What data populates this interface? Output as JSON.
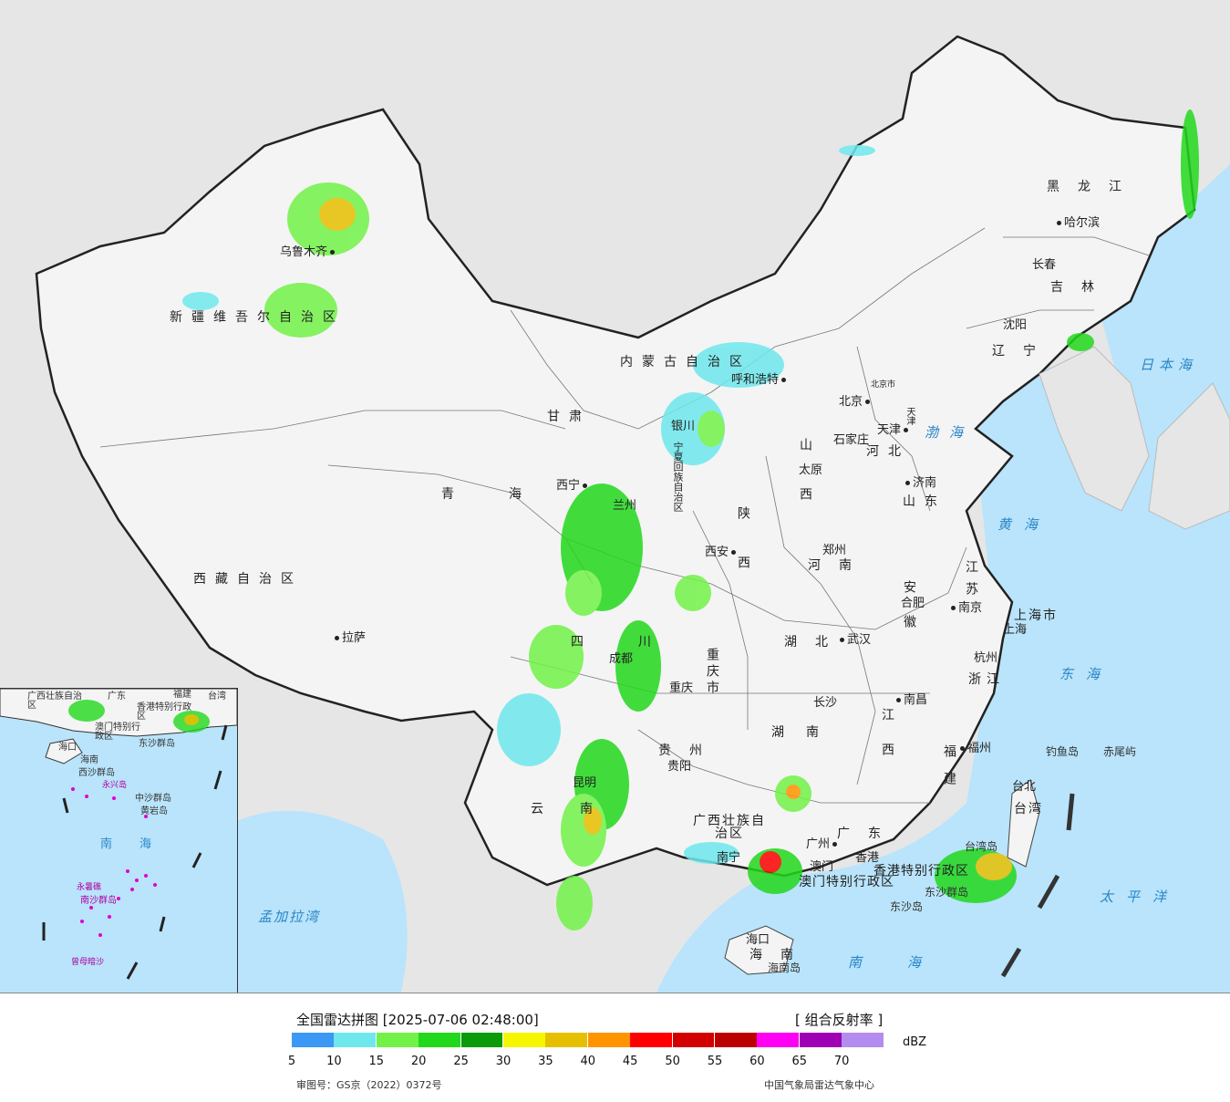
{
  "legend": {
    "title": "全国雷达拼图 [2025-07-06 02:48:00]",
    "product": "[ 组合反射率 ]",
    "unit": "dBZ",
    "review_number": "审图号：GS京（2022）0372号",
    "agency": "中国气象局雷达气象中心",
    "ticks": [
      "5",
      "10",
      "15",
      "20",
      "25",
      "30",
      "35",
      "40",
      "45",
      "50",
      "55",
      "60",
      "65",
      "70"
    ],
    "colors": [
      "#3b98f4",
      "#6ee8ec",
      "#72f248",
      "#22d81c",
      "#0a9a0a",
      "#f6f600",
      "#e6c000",
      "#ff9400",
      "#ff0000",
      "#d20000",
      "#bc0000",
      "#ff00f4",
      "#9e00b4",
      "#b48cf0"
    ]
  },
  "labels": {
    "cities": [
      "乌鲁木齐",
      "拉萨",
      "西宁",
      "兰州",
      "银川",
      "呼和浩特",
      "北京",
      "天津",
      "石家庄",
      "太原",
      "济南",
      "郑州",
      "西安",
      "合肥",
      "南京",
      "上海",
      "杭州",
      "武汉",
      "成都",
      "重庆",
      "长沙",
      "南昌",
      "福州",
      "台北",
      "贵阳",
      "昆明",
      "南宁",
      "广州",
      "澳门",
      "香港",
      "海口",
      "哈尔滨",
      "长春",
      "沈阳",
      "钓鱼岛",
      "赤尾屿",
      "东沙群岛",
      "东沙岛",
      "海南岛",
      "台湾岛"
    ],
    "provinces": [
      "新疆维吾尔自治区",
      "西藏自治区",
      "青海",
      "甘肃",
      "内蒙古自治区",
      "黑龙江",
      "吉林",
      "辽宁",
      "河北",
      "山西",
      "山东",
      "河南",
      "陕西",
      "宁夏回族自治区",
      "四川",
      "重庆市",
      "湖北",
      "安徽",
      "江苏",
      "上海市",
      "浙江",
      "湖南",
      "江西",
      "福建",
      "台湾",
      "贵州",
      "云南",
      "广西壮族自治区",
      "广东",
      "香港特别行政区",
      "澳门特别行政区",
      "海南",
      "北京市",
      "天津"
    ],
    "seas": [
      "日本海",
      "渤海",
      "黄海",
      "东海",
      "太平洋",
      "南海",
      "孟加拉湾"
    ],
    "inset": [
      "广西壮族自治区",
      "广东",
      "福建",
      "台湾",
      "香港特别行政区",
      "澳门特别行政区",
      "海口",
      "海南",
      "东沙群岛",
      "西沙群岛",
      "永兴岛",
      "中沙群岛",
      "黄岩岛",
      "南海",
      "永暑礁",
      "南沙群岛",
      "曾母暗沙"
    ]
  }
}
